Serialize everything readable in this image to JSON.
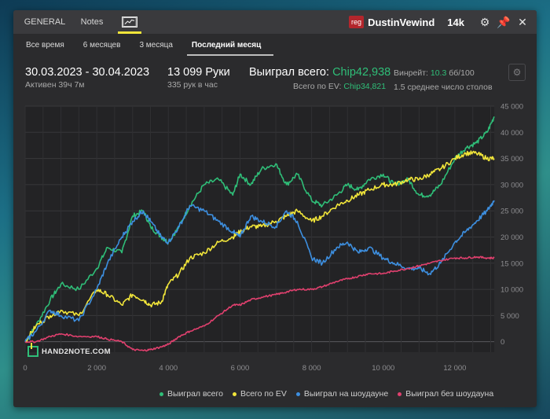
{
  "topbar": {
    "tabs": [
      {
        "label": "GENERAL"
      },
      {
        "label": "Notes"
      }
    ],
    "graph_tab_icon": "line-chart-icon",
    "reg_badge": "reg",
    "username": "DustinVewind",
    "stake": "14k",
    "icons": [
      "gear-icon",
      "pin-icon",
      "close-icon"
    ]
  },
  "subtabs": [
    {
      "label": "Все время"
    },
    {
      "label": "6 месяцев"
    },
    {
      "label": "3 месяца"
    },
    {
      "label": "Последний месяц"
    }
  ],
  "stats": {
    "date_range": "30.03.2023 - 30.04.2023",
    "active": "Активен 39ч 7м",
    "hands": "13 099 Руки",
    "hands_per_hour": "335 рук в час",
    "won_total_label": "Выиграл всего:",
    "won_total_value": "Chip42,938",
    "ev_total_label": "Всего по EV:",
    "ev_total_value": "Chip34,821",
    "winrate_label": "Винрейт:",
    "winrate_value": "10.3",
    "winrate_unit": "бб/100",
    "avg_tables": "1.5 среднее число столов"
  },
  "watermark": "HAND2NOTE.COM",
  "colors": {
    "won": "#2fbe78",
    "ev": "#f1e53a",
    "showdown": "#3d8fe0",
    "non_showdown": "#e0406e"
  },
  "chart_data": {
    "type": "line",
    "xlim": [
      0,
      13099
    ],
    "ylim": [
      -2000,
      45000
    ],
    "x_ticks": [
      0,
      2000,
      4000,
      6000,
      8000,
      10000,
      12000
    ],
    "x_tick_labels": [
      "0",
      "2 000",
      "4 000",
      "6 000",
      "8 000",
      "10 000",
      "12 000"
    ],
    "y_ticks": [
      0,
      5000,
      10000,
      15000,
      20000,
      25000,
      30000,
      35000,
      40000,
      45000
    ],
    "y_tick_labels": [
      "0",
      "5 000",
      "10 000",
      "15 000",
      "20 000",
      "25 000",
      "30 000",
      "35 000",
      "40 000",
      "45 000"
    ],
    "grid": true,
    "legend_position": "bottom-right",
    "series": [
      {
        "name": "Выиграл всего",
        "color": "#2fbe78",
        "x": [
          0,
          300,
          700,
          1000,
          1500,
          2000,
          2300,
          2700,
          3000,
          3300,
          3500,
          3800,
          4000,
          4300,
          4600,
          5000,
          5400,
          5800,
          6000,
          6300,
          6600,
          7000,
          7300,
          7600,
          8000,
          8300,
          8700,
          9000,
          9300,
          9600,
          10000,
          10300,
          10700,
          11000,
          11300,
          11600,
          12000,
          12300,
          12600,
          12900,
          13099
        ],
        "y": [
          0,
          3000,
          8000,
          11000,
          10000,
          14000,
          18000,
          17000,
          24000,
          25000,
          22000,
          20000,
          19000,
          22000,
          26000,
          30000,
          31000,
          28000,
          32000,
          30000,
          33000,
          34000,
          30000,
          32000,
          27000,
          26000,
          28000,
          30000,
          29000,
          31000,
          32000,
          30000,
          31000,
          28000,
          28000,
          30000,
          35000,
          37000,
          38000,
          40000,
          43000
        ]
      },
      {
        "name": "Всего по EV",
        "color": "#f1e53a",
        "x": [
          0,
          300,
          700,
          1000,
          1500,
          2000,
          2300,
          2700,
          3000,
          3300,
          3500,
          3800,
          4000,
          4300,
          4600,
          5000,
          5400,
          5800,
          6000,
          6300,
          6600,
          7000,
          7300,
          7600,
          8000,
          8300,
          8700,
          9000,
          9300,
          9600,
          10000,
          10300,
          10700,
          11000,
          11300,
          11600,
          12000,
          12300,
          12600,
          12900,
          13099
        ],
        "y": [
          0,
          3000,
          5000,
          6000,
          5000,
          10000,
          9000,
          7000,
          9000,
          8000,
          7000,
          7500,
          11000,
          13000,
          16000,
          17000,
          19000,
          20000,
          21000,
          22000,
          22000,
          23000,
          24000,
          25000,
          23000,
          24000,
          26000,
          27000,
          28000,
          29000,
          30000,
          30000,
          31000,
          31000,
          32000,
          33000,
          35000,
          36000,
          36000,
          35000,
          35000
        ]
      },
      {
        "name": "Выиграл на шоудауне",
        "color": "#3d8fe0",
        "x": [
          0,
          300,
          700,
          1000,
          1500,
          2000,
          2300,
          2700,
          3000,
          3300,
          3500,
          3800,
          4000,
          4300,
          4600,
          5000,
          5400,
          5800,
          6000,
          6300,
          6600,
          7000,
          7300,
          7600,
          8000,
          8300,
          8700,
          9000,
          9300,
          9600,
          10000,
          10300,
          10700,
          11000,
          11300,
          11600,
          12000,
          12300,
          12600,
          12900,
          13099
        ],
        "y": [
          0,
          2000,
          6000,
          5000,
          4000,
          10000,
          15000,
          20000,
          23000,
          25000,
          23000,
          20000,
          19000,
          22000,
          26000,
          25000,
          23000,
          21000,
          20000,
          24000,
          23000,
          22000,
          25000,
          23000,
          16000,
          15000,
          18000,
          19000,
          17000,
          18000,
          16000,
          15000,
          14000,
          14000,
          13000,
          15000,
          19000,
          21000,
          23000,
          25000,
          27000
        ]
      },
      {
        "name": "Выиграл без шоудауна",
        "color": "#e0406e",
        "x": [
          0,
          300,
          700,
          1000,
          1500,
          2000,
          2300,
          2700,
          3000,
          3300,
          3500,
          3800,
          4000,
          4300,
          4600,
          5000,
          5400,
          5800,
          6000,
          6300,
          6600,
          7000,
          7300,
          7600,
          8000,
          8300,
          8700,
          9000,
          9300,
          9600,
          10000,
          10300,
          10700,
          11000,
          11300,
          11600,
          12000,
          12300,
          12600,
          12900,
          13099
        ],
        "y": [
          0,
          0,
          1000,
          1500,
          1000,
          1000,
          500,
          0,
          -1500,
          -1700,
          -1500,
          -1000,
          -500,
          1000,
          2000,
          3000,
          5000,
          7000,
          7000,
          8000,
          8500,
          9000,
          9500,
          10000,
          10000,
          10500,
          11500,
          12000,
          12500,
          13000,
          13000,
          13500,
          14000,
          14500,
          15000,
          15500,
          16000,
          16000,
          16200,
          16000,
          16000
        ]
      }
    ]
  }
}
